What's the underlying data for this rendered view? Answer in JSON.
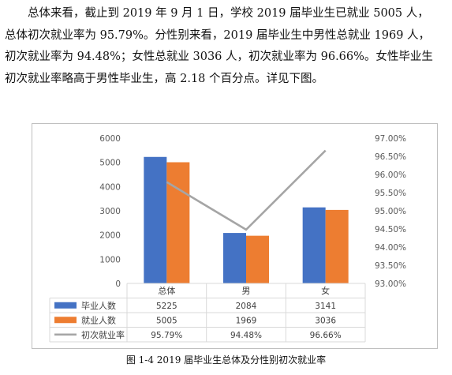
{
  "paragraph": [
    "总体来看，截止到 2019 年 9 月 1 日，学校 2019 届毕业生已就业 5005 人，",
    "总体初次就业率为 95.79%。分性别来看，2019 届毕业生中男性总就业 1969 人，",
    "初次就业率为 94.48%；女性总就业 3036 人，初次就业率为 96.66%。女性毕业生",
    "初次就业率略高于男性毕业生，高 2.18 个百分点。详见下图。"
  ],
  "caption": "图 1-4  2019 届毕业生总体及分性别初次就业率",
  "chart_data": {
    "type": "bar",
    "categories": [
      "总体",
      "男",
      "女"
    ],
    "series": [
      {
        "name": "毕业人数",
        "type": "bar",
        "axis": "left",
        "color": "#4472c4",
        "values": [
          5225,
          2084,
          3141
        ],
        "labels": [
          "5225",
          "2084",
          "3141"
        ]
      },
      {
        "name": "就业人数",
        "type": "bar",
        "axis": "left",
        "color": "#ed7d31",
        "values": [
          5005,
          1969,
          3036
        ],
        "labels": [
          "5005",
          "1969",
          "3036"
        ]
      },
      {
        "name": "初次就业率",
        "type": "line",
        "axis": "right",
        "color": "#a5a5a5",
        "values": [
          95.79,
          94.48,
          96.66
        ],
        "labels": [
          "95.79%",
          "94.48%",
          "96.66%"
        ]
      }
    ],
    "y_left": {
      "min": 0,
      "max": 6000,
      "ticks": [
        "0",
        "1000",
        "2000",
        "3000",
        "4000",
        "5000",
        "6000"
      ]
    },
    "y_right": {
      "min": 93.0,
      "max": 97.0,
      "ticks": [
        "93.00%",
        "93.50%",
        "94.00%",
        "94.50%",
        "95.00%",
        "95.50%",
        "96.00%",
        "96.50%",
        "97.00%"
      ]
    },
    "grid": false,
    "legend": "data-table-below"
  }
}
